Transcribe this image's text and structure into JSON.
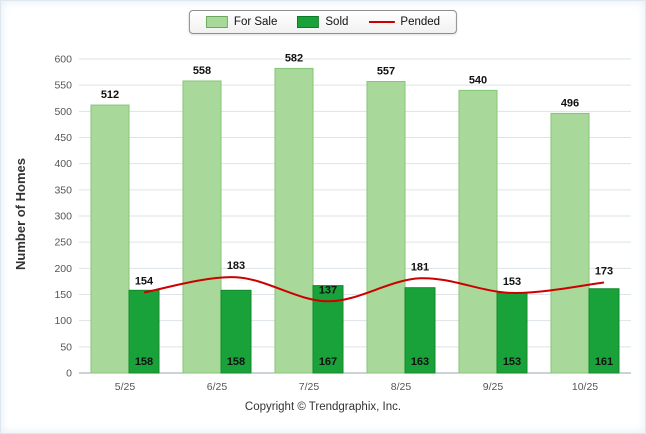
{
  "footer": {
    "copyright": "Copyright © Trendgraphix, Inc."
  },
  "chart_data": {
    "type": "bar",
    "title": "",
    "categories": [
      "5/25",
      "6/25",
      "7/25",
      "8/25",
      "9/25",
      "10/25"
    ],
    "series": [
      {
        "name": "For Sale",
        "type": "bar",
        "color": "#a8d99a",
        "border": "#86c477",
        "values": [
          512,
          558,
          582,
          557,
          540,
          496
        ]
      },
      {
        "name": "Sold",
        "type": "bar",
        "color": "#1aa23a",
        "border": "#128a2c",
        "values": [
          158,
          158,
          167,
          163,
          153,
          161
        ]
      },
      {
        "name": "Pended",
        "type": "line",
        "color": "#cc0000",
        "values": [
          154,
          183,
          137,
          181,
          153,
          173
        ]
      }
    ],
    "xlabel": "",
    "ylabel": "Number of Homes",
    "ylim": [
      0,
      600
    ],
    "ytick_interval": 50,
    "grid": true,
    "legend_position": "top"
  }
}
